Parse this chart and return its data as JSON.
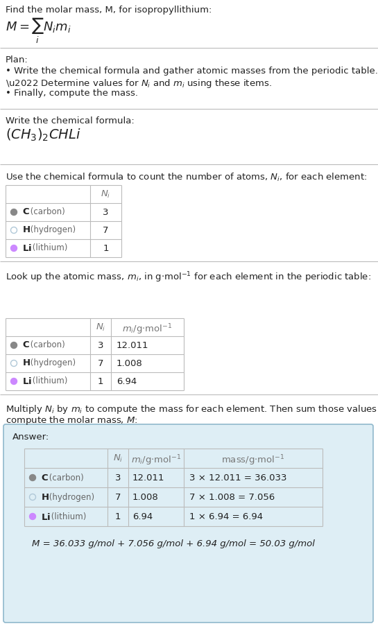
{
  "title_text": "Find the molar mass, M, for isopropyllithium:",
  "plan_title": "Plan:",
  "plan_bullets": [
    "• Write the chemical formula and gather atomic masses from the periodic table.",
    "• Determine values for Nᵢ and mᵢ using these items.",
    "• Finally, compute the mass."
  ],
  "chem_formula_label": "Write the chemical formula:",
  "count_label": "Use the chemical formula to count the number of atoms, Nᵢ, for each element:",
  "lookup_label": "Look up the atomic mass, mᵢ, in g·mol⁻¹ for each element in the periodic table:",
  "multiply_label1": "Multiply Nᵢ by mᵢ to compute the mass for each element. Then sum those values to",
  "multiply_label2": "compute the molar mass, M:",
  "answer_label": "Answer:",
  "elements": [
    "C",
    "H",
    "Li"
  ],
  "elem_names": [
    "(carbon)",
    "(hydrogen)",
    "(lithium)"
  ],
  "elem_colors": [
    "#888888",
    "#b0c8d8",
    "#cc88ff"
  ],
  "elem_filled": [
    true,
    false,
    true
  ],
  "ni_vals": [
    "3",
    "7",
    "1"
  ],
  "mi_vals": [
    "12.011",
    "1.008",
    "6.94"
  ],
  "mass_vals": [
    "3 × 12.011 = 36.033",
    "7 × 1.008 = 7.056",
    "1 × 6.94 = 6.94"
  ],
  "final_answer": "M = 36.033 g/mol + 7.056 g/mol + 6.94 g/mol = 50.03 g/mol",
  "bg_color": "#ffffff",
  "answer_box_color": "#deeef5",
  "answer_box_border": "#90b8cc",
  "separator_color": "#bbbbbb",
  "text_color": "#222222",
  "light_text_color": "#666666",
  "header_color": "#777777",
  "table_border_color": "#bbbbbb"
}
